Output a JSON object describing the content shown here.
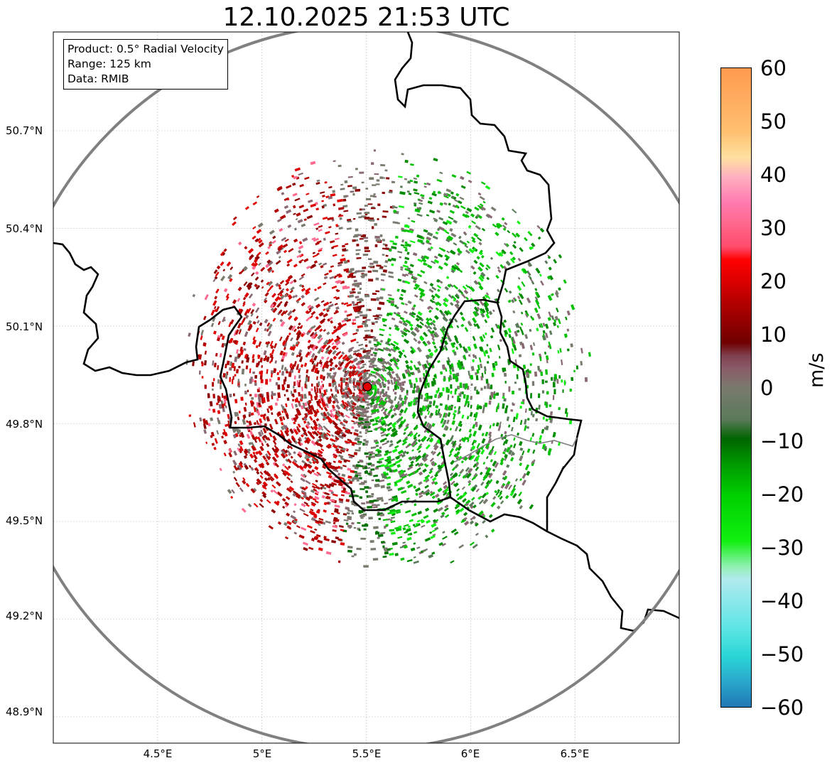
{
  "title": "12.10.2025 21:53 UTC",
  "info": {
    "product": "Product: 0.5° Radial Velocity",
    "range": "Range: 125 km",
    "data": "Data: RMIB"
  },
  "axes": {
    "lat_ticks": [
      "50.7°N",
      "50.4°N",
      "50.1°N",
      "49.8°N",
      "49.5°N",
      "49.2°N",
      "48.9°N"
    ],
    "lon_ticks": [
      "4.5°E",
      "5°E",
      "5.5°E",
      "6°E",
      "6.5°E"
    ],
    "lat_values": [
      50.7,
      50.4,
      50.1,
      49.8,
      49.5,
      49.2,
      48.9
    ],
    "lon_values": [
      4.5,
      5.0,
      5.5,
      6.0,
      6.5
    ],
    "lon_range": [
      4.0,
      7.0
    ],
    "lat_range": [
      48.8,
      51.0
    ]
  },
  "radar": {
    "lon": 5.505,
    "lat": 49.914,
    "range_km": 125,
    "marker_color": "#e00000"
  },
  "colorbar": {
    "unit": "m/s",
    "min": -60,
    "max": 60,
    "tick_labels": [
      "60",
      "50",
      "40",
      "30",
      "20",
      "10",
      "0",
      "−10",
      "−20",
      "−30",
      "−40",
      "−50",
      "−60"
    ],
    "colors": {
      "approaching_strong": "#1f78b4",
      "approaching_cyan": "#2ad6d6",
      "approaching_light": "#b0eaee",
      "approaching_green": "#00d000",
      "approaching_dark_green": "#006400",
      "near_zero_gray": "#7a7a6e",
      "receding_dark_red": "#700000",
      "receding_red": "#ff0000",
      "receding_pink": "#ff7ab0",
      "receding_orange": "#ff9a50"
    }
  }
}
